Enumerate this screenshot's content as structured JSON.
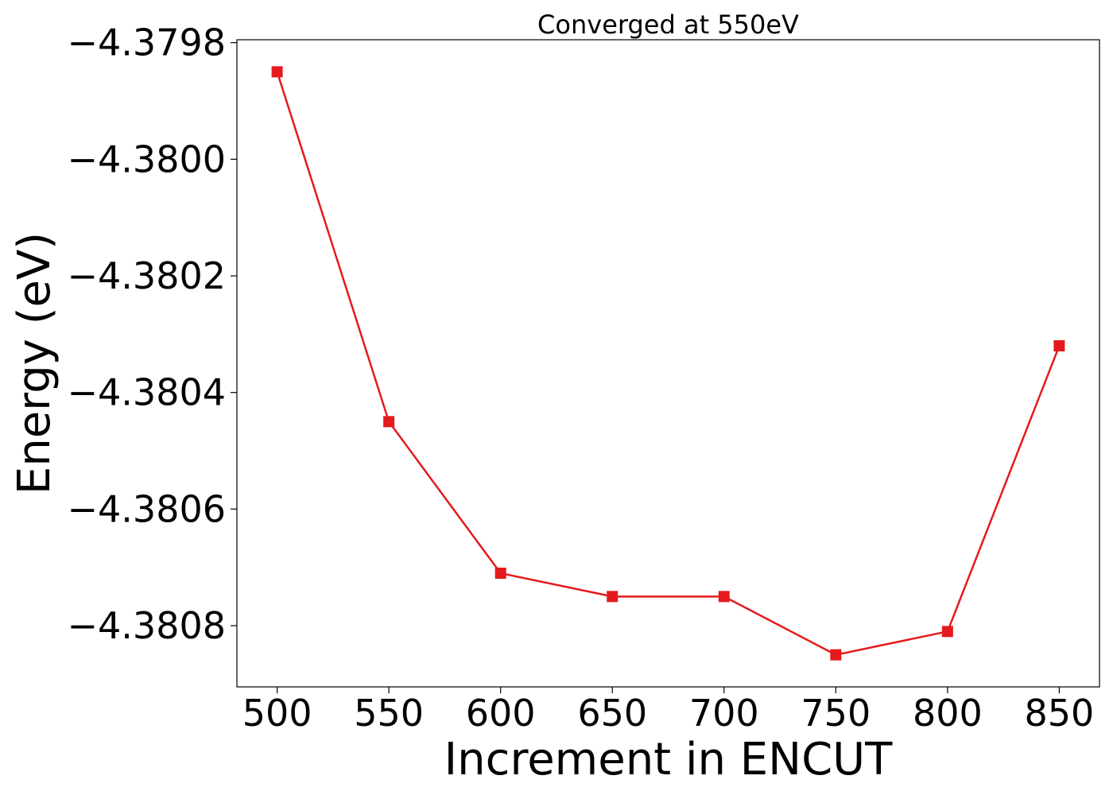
{
  "chart_data": {
    "type": "line",
    "title": "Converged at 550eV",
    "xlabel": "Increment in ENCUT",
    "ylabel": "Energy (eV)",
    "x": [
      500,
      550,
      600,
      650,
      700,
      750,
      800,
      850
    ],
    "series": [
      {
        "values": [
          -4.37985,
          -4.38045,
          -4.38071,
          -4.38075,
          -4.38075,
          -4.38085,
          -4.38081,
          -4.38032
        ],
        "color": "#e41a1c",
        "marker": "square"
      }
    ],
    "xticks": [
      "500",
      "550",
      "600",
      "650",
      "700",
      "750",
      "800",
      "850"
    ],
    "yticks": [
      {
        "value": -4.3798,
        "label": "−4.3798"
      },
      {
        "value": -4.38,
        "label": "−4.3800"
      },
      {
        "value": -4.3802,
        "label": "−4.3802"
      },
      {
        "value": -4.3804,
        "label": "−4.3804"
      },
      {
        "value": -4.3806,
        "label": "−4.3806"
      },
      {
        "value": -4.3808,
        "label": "−4.3808"
      }
    ],
    "xlim": [
      482,
      868
    ],
    "ylim": [
      -4.380905,
      -4.379795
    ],
    "grid": false,
    "legend": "none"
  }
}
